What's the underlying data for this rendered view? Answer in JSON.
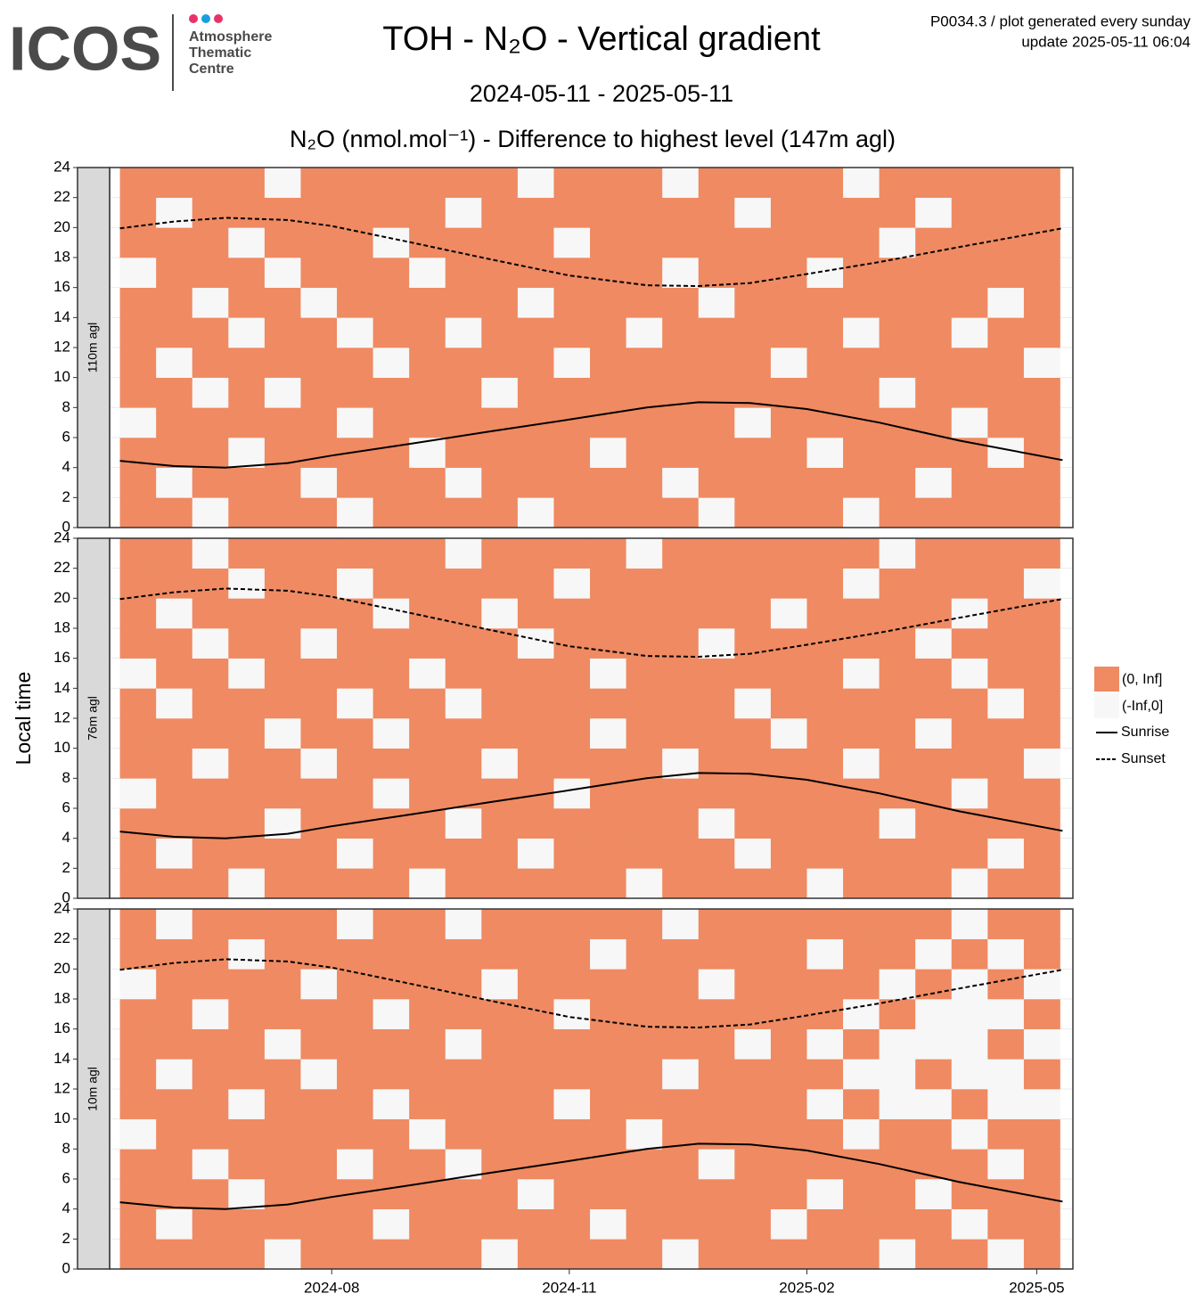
{
  "logo": {
    "name": "ICOS",
    "lines": [
      "Atmosphere",
      "Thematic",
      "Centre"
    ]
  },
  "header": {
    "lines": [
      "P0034.3 / plot generated every sunday",
      "update  2025-05-11 06:04"
    ]
  },
  "chart_data": {
    "type": "heatmap",
    "title": "TOH - N₂O - Vertical gradient",
    "subtitle": "2024-05-11 - 2025-05-11",
    "plot_title": "N₂O (nmol.mol⁻¹) - Difference to highest level (147m agl)",
    "y_label": "Local time",
    "xlim": [
      "2024-05-07",
      "2025-05-15"
    ],
    "xticks": [
      {
        "value": "2024-08-01",
        "label": "2024-08"
      },
      {
        "value": "2024-11-01",
        "label": "2024-11"
      },
      {
        "value": "2025-02-01",
        "label": "2025-02"
      },
      {
        "value": "2025-05-01",
        "label": "2025-05"
      }
    ],
    "ylim": [
      0,
      24
    ],
    "yticks": [
      0,
      2,
      4,
      6,
      8,
      10,
      12,
      14,
      16,
      18,
      20,
      22,
      24
    ],
    "grid": true,
    "legend_position": "right",
    "levels": [
      {
        "label": "(-Inf,0]",
        "color": "#f7f7f7"
      },
      {
        "label": "(0, Inf]",
        "color": "#ef8a62"
      }
    ],
    "x_bins": [
      "2024-05-11",
      "2024-05-25",
      "2024-06-08",
      "2024-06-22",
      "2024-07-06",
      "2024-07-20",
      "2024-08-03",
      "2024-08-17",
      "2024-08-31",
      "2024-09-14",
      "2024-09-28",
      "2024-10-12",
      "2024-10-26",
      "2024-11-09",
      "2024-11-23",
      "2024-12-07",
      "2024-12-21",
      "2025-01-04",
      "2025-01-18",
      "2025-02-01",
      "2025-02-15",
      "2025-03-01",
      "2025-03-15",
      "2025-03-29",
      "2025-04-12",
      "2025-04-26",
      "2025-05-10"
    ],
    "y_bins": [
      0,
      2,
      4,
      6,
      8,
      10,
      12,
      14,
      16,
      18,
      20,
      22,
      24
    ],
    "panels": [
      {
        "label": "110m agl",
        "cells": [
          [
            1,
            1,
            0,
            1,
            1,
            1,
            0,
            1,
            1,
            1,
            1,
            0,
            1,
            1,
            1,
            1,
            0,
            1,
            1,
            1,
            0,
            1,
            1,
            1,
            1,
            1
          ],
          [
            1,
            0,
            1,
            1,
            1,
            0,
            1,
            1,
            1,
            0,
            1,
            1,
            1,
            1,
            1,
            0,
            1,
            1,
            1,
            1,
            1,
            1,
            0,
            1,
            1,
            1
          ],
          [
            1,
            1,
            1,
            0,
            1,
            1,
            1,
            1,
            0,
            1,
            1,
            1,
            1,
            0,
            1,
            1,
            1,
            1,
            1,
            0,
            1,
            1,
            1,
            1,
            0,
            1
          ],
          [
            0,
            1,
            1,
            1,
            1,
            1,
            0,
            1,
            1,
            1,
            1,
            1,
            1,
            1,
            1,
            1,
            1,
            0,
            1,
            1,
            1,
            1,
            1,
            0,
            1,
            1
          ],
          [
            1,
            1,
            0,
            1,
            0,
            1,
            1,
            1,
            1,
            1,
            0,
            1,
            1,
            1,
            1,
            1,
            1,
            1,
            1,
            1,
            1,
            0,
            1,
            1,
            1,
            1
          ],
          [
            1,
            0,
            1,
            1,
            1,
            1,
            1,
            0,
            1,
            1,
            1,
            1,
            0,
            1,
            1,
            1,
            1,
            1,
            0,
            1,
            1,
            1,
            1,
            1,
            1,
            0
          ],
          [
            1,
            1,
            1,
            0,
            1,
            1,
            0,
            1,
            1,
            0,
            1,
            1,
            1,
            1,
            0,
            1,
            1,
            1,
            1,
            1,
            0,
            1,
            1,
            0,
            1,
            1
          ],
          [
            1,
            1,
            0,
            1,
            1,
            0,
            1,
            1,
            1,
            1,
            1,
            0,
            1,
            1,
            1,
            1,
            0,
            1,
            1,
            1,
            1,
            1,
            1,
            1,
            0,
            1
          ],
          [
            0,
            1,
            1,
            1,
            0,
            1,
            1,
            1,
            0,
            1,
            1,
            1,
            1,
            1,
            1,
            0,
            1,
            1,
            1,
            0,
            1,
            1,
            1,
            1,
            1,
            1
          ],
          [
            1,
            1,
            1,
            0,
            1,
            1,
            1,
            0,
            1,
            1,
            1,
            1,
            0,
            1,
            1,
            1,
            1,
            1,
            1,
            1,
            1,
            0,
            1,
            1,
            1,
            1
          ],
          [
            1,
            0,
            1,
            1,
            1,
            1,
            1,
            1,
            1,
            0,
            1,
            1,
            1,
            1,
            1,
            1,
            1,
            0,
            1,
            1,
            1,
            1,
            0,
            1,
            1,
            1
          ],
          [
            1,
            1,
            1,
            1,
            0,
            1,
            1,
            1,
            1,
            1,
            1,
            0,
            1,
            1,
            1,
            0,
            1,
            1,
            1,
            1,
            0,
            1,
            1,
            1,
            1,
            1
          ]
        ]
      },
      {
        "label": "76m agl",
        "cells": [
          [
            1,
            1,
            1,
            0,
            1,
            1,
            1,
            1,
            0,
            1,
            1,
            1,
            1,
            1,
            0,
            1,
            1,
            1,
            1,
            0,
            1,
            1,
            1,
            0,
            1,
            1
          ],
          [
            1,
            0,
            1,
            1,
            1,
            1,
            0,
            1,
            1,
            1,
            1,
            0,
            1,
            1,
            1,
            1,
            1,
            0,
            1,
            1,
            1,
            1,
            1,
            1,
            0,
            1
          ],
          [
            1,
            1,
            1,
            1,
            0,
            1,
            1,
            1,
            1,
            0,
            1,
            1,
            1,
            1,
            1,
            1,
            0,
            1,
            1,
            1,
            1,
            0,
            1,
            1,
            1,
            1
          ],
          [
            0,
            1,
            1,
            1,
            1,
            1,
            1,
            0,
            1,
            1,
            1,
            1,
            0,
            1,
            1,
            1,
            1,
            1,
            1,
            1,
            1,
            1,
            1,
            0,
            1,
            1
          ],
          [
            1,
            1,
            0,
            1,
            1,
            0,
            1,
            1,
            1,
            1,
            0,
            1,
            1,
            1,
            1,
            0,
            1,
            1,
            1,
            1,
            0,
            1,
            1,
            1,
            1,
            0
          ],
          [
            1,
            1,
            1,
            1,
            0,
            1,
            1,
            0,
            1,
            1,
            1,
            1,
            1,
            0,
            1,
            1,
            1,
            1,
            0,
            1,
            1,
            1,
            0,
            1,
            1,
            1
          ],
          [
            1,
            0,
            1,
            1,
            1,
            1,
            0,
            1,
            1,
            0,
            1,
            1,
            1,
            1,
            1,
            1,
            1,
            0,
            1,
            1,
            1,
            1,
            1,
            1,
            0,
            1
          ],
          [
            0,
            1,
            1,
            0,
            1,
            1,
            1,
            1,
            0,
            1,
            1,
            1,
            1,
            0,
            1,
            1,
            1,
            1,
            1,
            1,
            0,
            1,
            1,
            0,
            1,
            1
          ],
          [
            1,
            1,
            0,
            1,
            1,
            0,
            1,
            1,
            1,
            1,
            1,
            0,
            1,
            1,
            1,
            1,
            0,
            1,
            1,
            1,
            1,
            1,
            0,
            1,
            1,
            1
          ],
          [
            1,
            0,
            1,
            1,
            1,
            1,
            1,
            0,
            1,
            1,
            0,
            1,
            1,
            1,
            1,
            1,
            1,
            1,
            0,
            1,
            1,
            1,
            1,
            0,
            1,
            1
          ],
          [
            1,
            1,
            1,
            0,
            1,
            1,
            0,
            1,
            1,
            1,
            1,
            1,
            0,
            1,
            1,
            1,
            1,
            1,
            1,
            1,
            0,
            1,
            1,
            1,
            1,
            0
          ],
          [
            1,
            1,
            0,
            1,
            1,
            1,
            1,
            1,
            1,
            0,
            1,
            1,
            1,
            1,
            0,
            1,
            1,
            1,
            1,
            1,
            1,
            0,
            1,
            1,
            1,
            1
          ]
        ]
      },
      {
        "label": "10m agl",
        "cells": [
          [
            1,
            1,
            1,
            1,
            0,
            1,
            1,
            1,
            1,
            1,
            0,
            1,
            1,
            1,
            1,
            0,
            1,
            1,
            1,
            1,
            1,
            0,
            1,
            1,
            0,
            1
          ],
          [
            1,
            0,
            1,
            1,
            1,
            1,
            1,
            0,
            1,
            1,
            1,
            1,
            1,
            0,
            1,
            1,
            1,
            1,
            0,
            1,
            1,
            1,
            1,
            0,
            1,
            1
          ],
          [
            1,
            1,
            1,
            0,
            1,
            1,
            1,
            1,
            1,
            1,
            1,
            0,
            1,
            1,
            1,
            1,
            1,
            1,
            1,
            0,
            1,
            1,
            0,
            1,
            1,
            1
          ],
          [
            1,
            1,
            0,
            1,
            1,
            1,
            0,
            1,
            1,
            0,
            1,
            1,
            1,
            1,
            1,
            1,
            0,
            1,
            1,
            1,
            1,
            1,
            1,
            1,
            0,
            1
          ],
          [
            0,
            1,
            1,
            1,
            1,
            1,
            1,
            1,
            0,
            1,
            1,
            1,
            1,
            1,
            0,
            1,
            1,
            1,
            1,
            1,
            0,
            1,
            1,
            0,
            1,
            1
          ],
          [
            1,
            1,
            1,
            0,
            1,
            1,
            1,
            0,
            1,
            1,
            1,
            1,
            0,
            1,
            1,
            1,
            1,
            1,
            1,
            0,
            1,
            0,
            0,
            1,
            0,
            0
          ],
          [
            1,
            0,
            1,
            1,
            1,
            0,
            1,
            1,
            1,
            1,
            1,
            1,
            1,
            1,
            1,
            0,
            1,
            1,
            1,
            1,
            0,
            0,
            1,
            0,
            0,
            1
          ],
          [
            1,
            1,
            1,
            1,
            0,
            1,
            1,
            1,
            1,
            0,
            1,
            1,
            1,
            1,
            1,
            1,
            1,
            0,
            1,
            0,
            1,
            0,
            0,
            0,
            1,
            0
          ],
          [
            1,
            1,
            0,
            1,
            1,
            1,
            1,
            0,
            1,
            1,
            1,
            1,
            0,
            1,
            1,
            1,
            1,
            1,
            1,
            1,
            0,
            1,
            0,
            0,
            0,
            1
          ],
          [
            0,
            1,
            1,
            1,
            1,
            0,
            1,
            1,
            1,
            1,
            0,
            1,
            1,
            1,
            1,
            1,
            0,
            1,
            1,
            1,
            1,
            0,
            1,
            0,
            1,
            0
          ],
          [
            1,
            1,
            1,
            0,
            1,
            1,
            1,
            1,
            1,
            1,
            1,
            1,
            1,
            0,
            1,
            1,
            1,
            1,
            1,
            0,
            1,
            1,
            0,
            1,
            0,
            1
          ],
          [
            1,
            0,
            1,
            1,
            1,
            1,
            0,
            1,
            1,
            0,
            1,
            1,
            1,
            1,
            1,
            0,
            1,
            1,
            1,
            1,
            1,
            1,
            1,
            0,
            1,
            1
          ]
        ]
      }
    ],
    "lines": [
      {
        "name": "Sunrise",
        "color": "#000000",
        "dashed": false,
        "x": [
          "2024-05-11",
          "2024-06-01",
          "2024-06-21",
          "2024-07-15",
          "2024-08-01",
          "2024-09-01",
          "2024-10-01",
          "2024-11-01",
          "2024-12-01",
          "2024-12-21",
          "2025-01-10",
          "2025-02-01",
          "2025-03-01",
          "2025-04-01",
          "2025-05-11"
        ],
        "values": [
          4.45,
          4.1,
          4.0,
          4.3,
          4.8,
          5.6,
          6.4,
          7.2,
          8.0,
          8.35,
          8.3,
          7.9,
          7.0,
          5.8,
          4.5
        ]
      },
      {
        "name": "Sunset",
        "color": "#000000",
        "dashed": true,
        "x": [
          "2024-05-11",
          "2024-06-01",
          "2024-06-21",
          "2024-07-15",
          "2024-08-01",
          "2024-09-01",
          "2024-10-01",
          "2024-11-01",
          "2024-12-01",
          "2024-12-21",
          "2025-01-10",
          "2025-02-01",
          "2025-03-01",
          "2025-04-01",
          "2025-05-11"
        ],
        "values": [
          19.95,
          20.4,
          20.65,
          20.5,
          20.1,
          19.0,
          17.9,
          16.8,
          16.15,
          16.1,
          16.3,
          16.9,
          17.7,
          18.7,
          19.95
        ]
      }
    ]
  }
}
